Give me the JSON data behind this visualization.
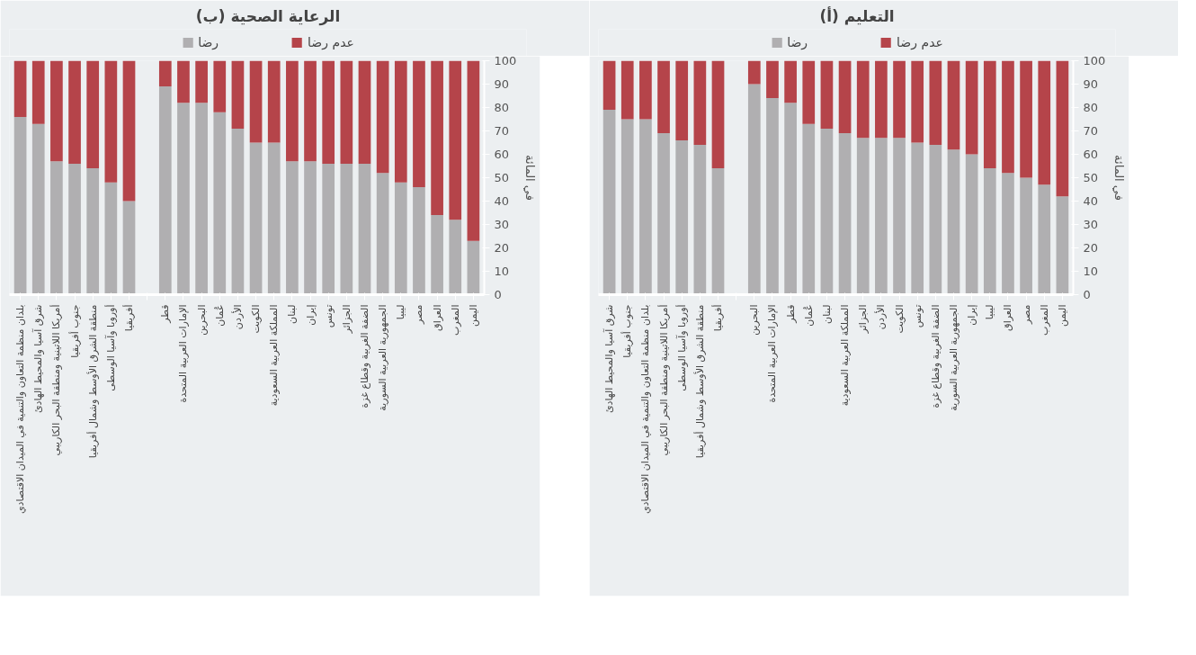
{
  "chart_data": [
    {
      "type": "bar",
      "stacked": true,
      "title": "(ب) الرعاية الصحية",
      "ylabel": "في المائة",
      "legend": "top",
      "grid": false,
      "ylim": [
        0,
        100
      ],
      "yticks": [
        0,
        10,
        20,
        30,
        40,
        50,
        60,
        70,
        80,
        90,
        100
      ],
      "categories": [
        "بلدان منظمة التعاون والتنمية في الميدان الاقتصادي",
        "شرق آسيا والمحيط الهادئ",
        "أمريكا اللاتينية ومنطقة البحر الكاريبي",
        "جنوب أفريقيا",
        "منطقة الشرق الأوسط وشمال أفريقيا",
        "أوروبا وآسيا الوسطى",
        "أفريقيا",
        null,
        "قطر",
        "الإمارات العربية المتحدة",
        "البحرين",
        "عُمان",
        "الأردن",
        "الكويت",
        "المملكة العربية السعودية",
        "لبنان",
        "إيران",
        "تونس",
        "الجزائر",
        "الضفة الغربية وقطاع غزة",
        "الجمهورية العربية السورية",
        "ليبيا",
        "مصر",
        "العراق",
        "المغرب",
        "اليمن"
      ],
      "series": [
        {
          "name": "رضا",
          "color": "#b0afb1",
          "values": [
            76,
            73,
            57,
            56,
            54,
            48,
            40,
            null,
            89,
            82,
            82,
            78,
            71,
            65,
            65,
            57,
            57,
            56,
            56,
            56,
            52,
            48,
            46,
            34,
            32,
            23
          ]
        },
        {
          "name": "عدم رضا",
          "color": "#b5444a",
          "values": [
            24,
            27,
            43,
            44,
            46,
            52,
            60,
            null,
            11,
            18,
            18,
            22,
            29,
            35,
            35,
            43,
            43,
            44,
            44,
            44,
            48,
            52,
            54,
            66,
            68,
            77
          ]
        }
      ]
    },
    {
      "type": "bar",
      "stacked": true,
      "title": "(أ) التعليم",
      "ylabel": "في المائة",
      "legend": "top",
      "grid": false,
      "ylim": [
        0,
        100
      ],
      "yticks": [
        0,
        10,
        20,
        30,
        40,
        50,
        60,
        70,
        80,
        90,
        100
      ],
      "categories": [
        "شرق آسيا والمحيط الهادئ",
        "جنوب أفريقيا",
        "بلدان منظمة التعاون والتنمية في الميدان الاقتصادي",
        "أمريكا اللاتينية ومنطقة البحر الكاريبي",
        "أوروبا وآسيا الوسطى",
        "منطقة الشرق الأوسط وشمال أفريقيا",
        "أفريقيا",
        null,
        "البحرين",
        "الإمارات العربية المتحدة",
        "قطر",
        "عُمان",
        "لبنان",
        "المملكة العربية السعودية",
        "الجزائر",
        "الأردن",
        "الكويت",
        "تونس",
        "الضفة الغربية وقطاع غزة",
        "الجمهورية العربية السورية",
        "إيران",
        "ليبيا",
        "العراق",
        "مصر",
        "المغرب",
        "اليمن"
      ],
      "series": [
        {
          "name": "رضا",
          "color": "#b0afb1",
          "values": [
            79,
            75,
            75,
            69,
            66,
            64,
            54,
            null,
            90,
            84,
            82,
            73,
            71,
            69,
            67,
            67,
            67,
            65,
            64,
            62,
            60,
            54,
            52,
            50,
            47,
            42
          ]
        },
        {
          "name": "عدم رضا",
          "color": "#b5444a",
          "values": [
            21,
            25,
            25,
            31,
            34,
            36,
            46,
            null,
            10,
            16,
            18,
            27,
            29,
            31,
            33,
            33,
            33,
            35,
            36,
            38,
            40,
            46,
            48,
            50,
            53,
            58
          ]
        }
      ]
    }
  ]
}
